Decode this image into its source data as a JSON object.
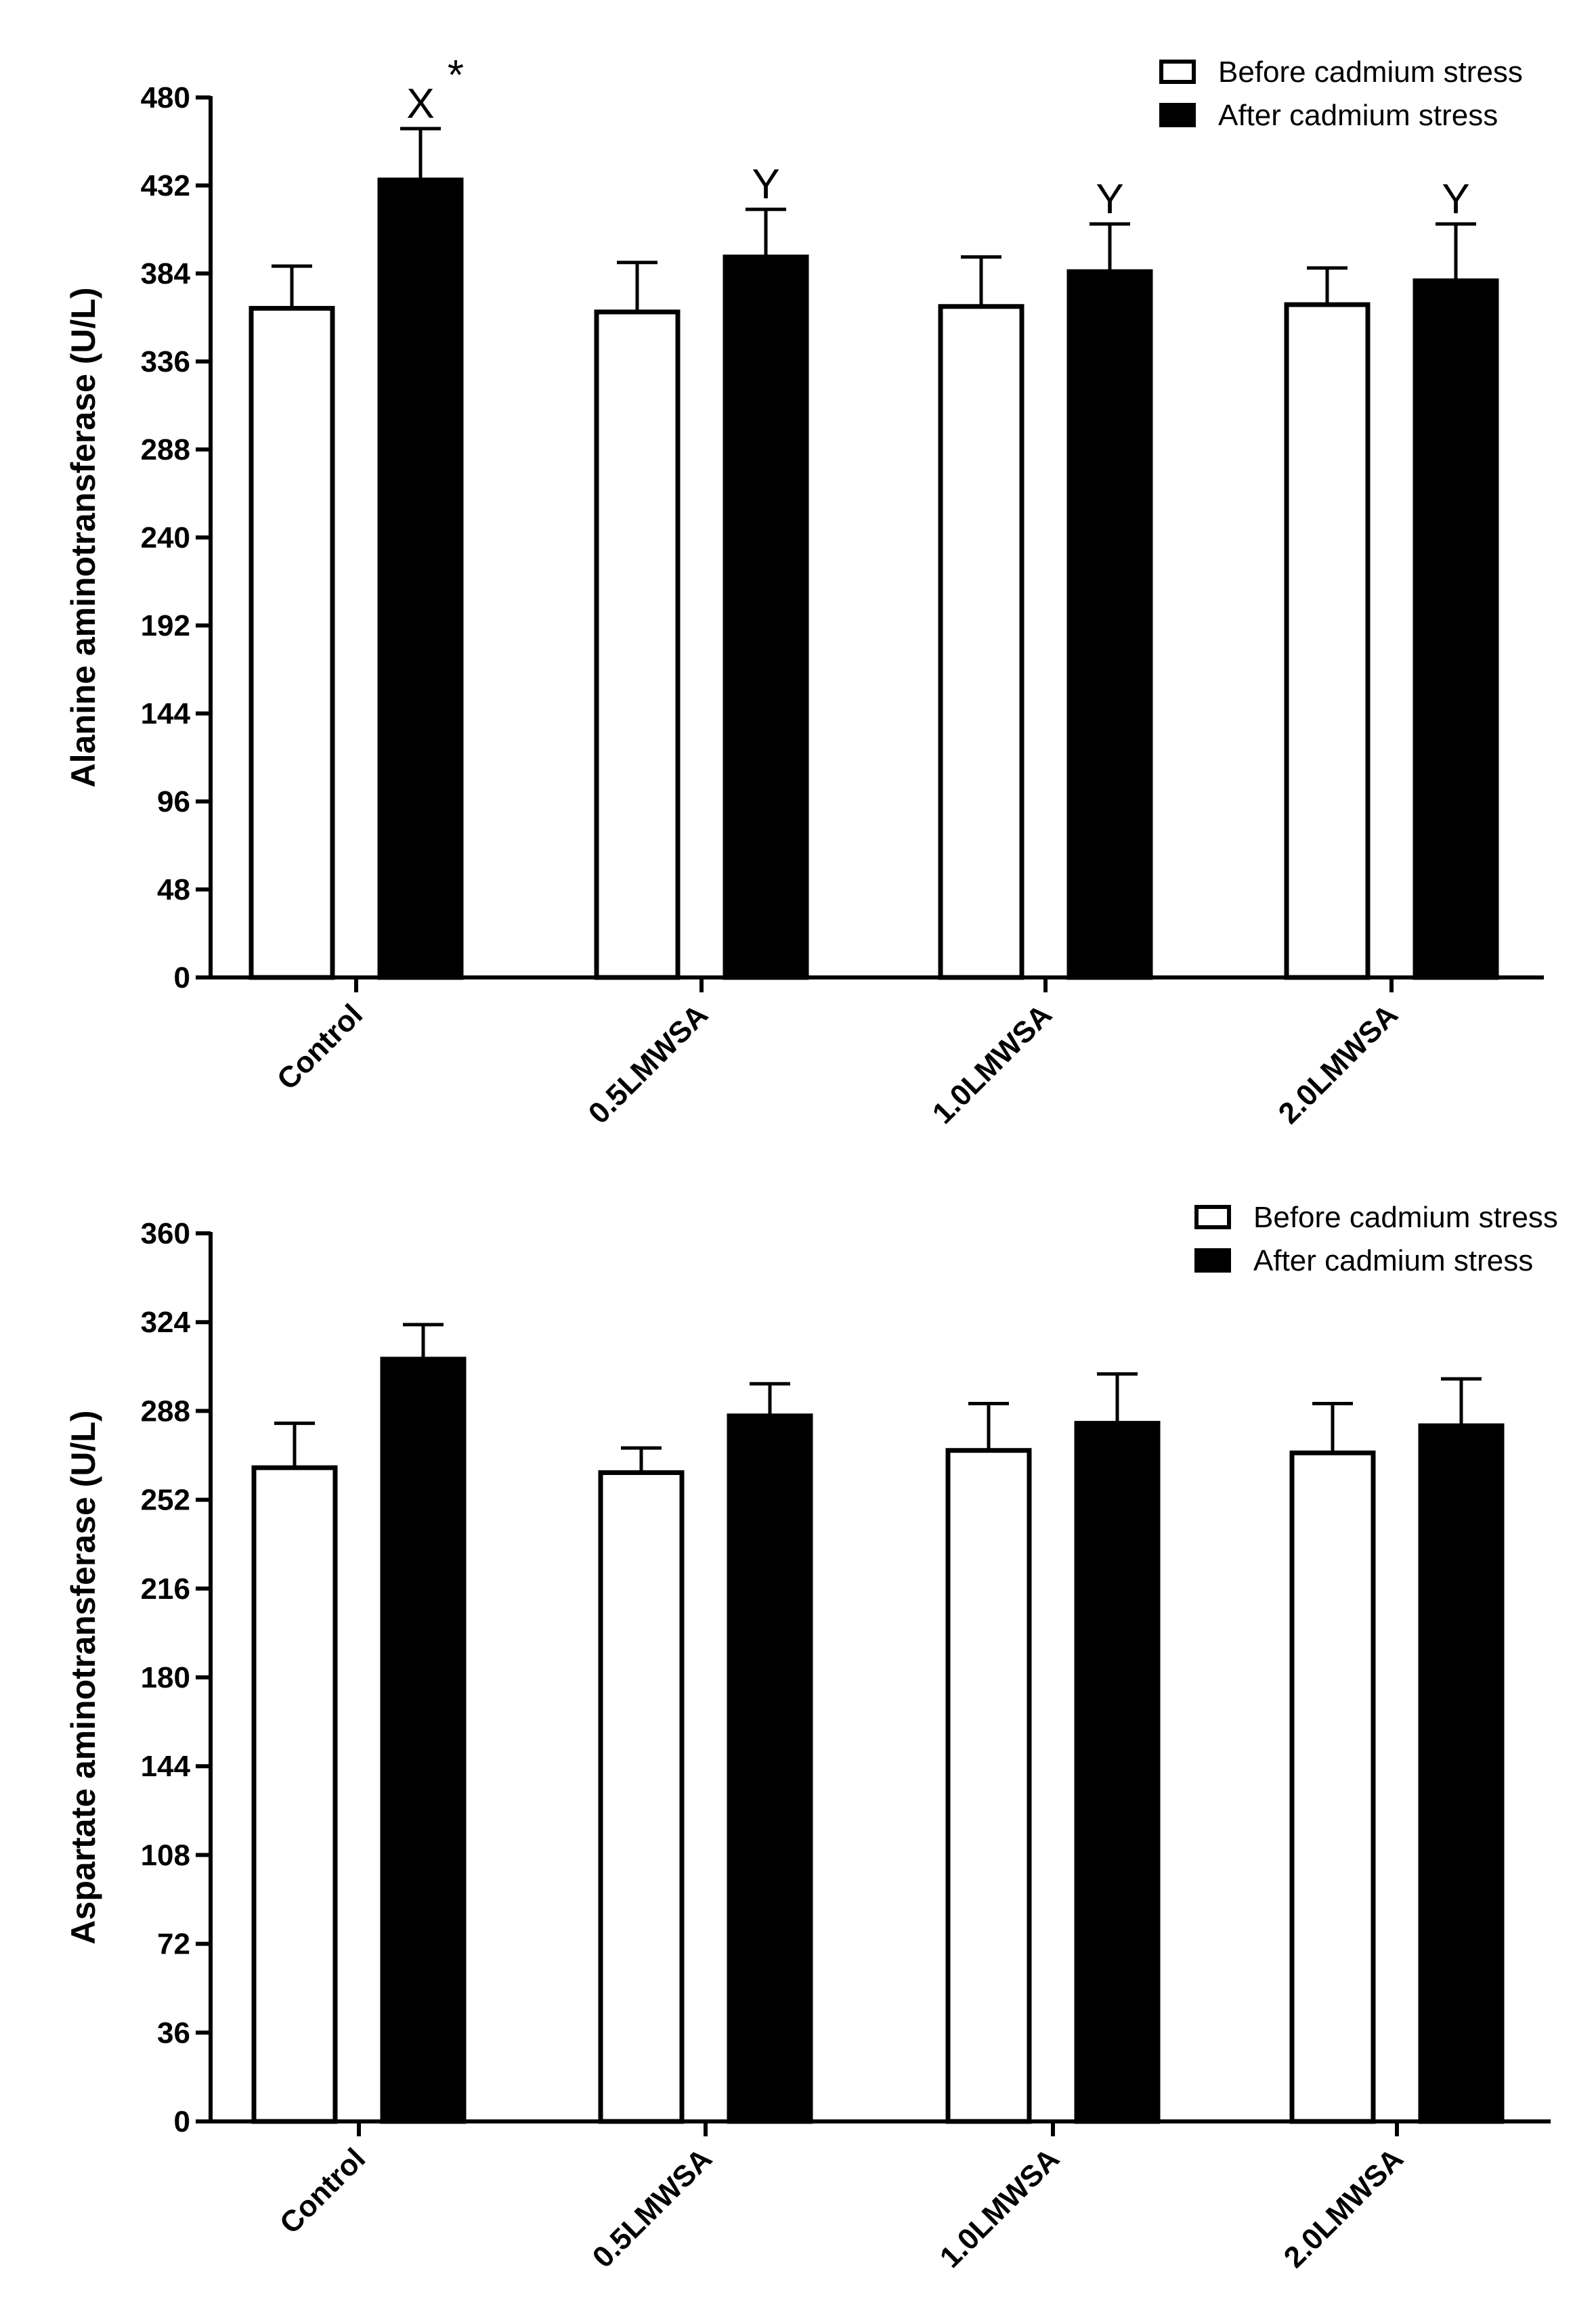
{
  "chart_data": [
    {
      "type": "bar",
      "ylabel": "Alanine aminotransferase  (U/L)",
      "categories": [
        "Control",
        "0.5LMWSA",
        "1.0LMWSA",
        "2.0LMWSA"
      ],
      "ylim": [
        0,
        480
      ],
      "yticks": [
        0,
        48,
        96,
        144,
        192,
        240,
        288,
        336,
        384,
        432,
        480
      ],
      "series": [
        {
          "name": "Before cadmium stress",
          "fill": "#ffffff",
          "values": [
            365,
            363,
            366,
            367
          ],
          "errors": [
            23,
            27,
            27,
            20
          ]
        },
        {
          "name": "After cadmium stress",
          "fill": "#000000",
          "values": [
            435,
            393,
            385,
            380
          ],
          "errors": [
            28,
            26,
            26,
            31
          ]
        }
      ],
      "annotations": [
        {
          "category": 0,
          "series": 1,
          "text": "X",
          "star": "*"
        },
        {
          "category": 1,
          "series": 1,
          "text": "Y",
          "star": ""
        },
        {
          "category": 2,
          "series": 1,
          "text": "Y",
          "star": ""
        },
        {
          "category": 3,
          "series": 1,
          "text": "Y",
          "star": ""
        }
      ],
      "legend": "top-right"
    },
    {
      "type": "bar",
      "ylabel": "Aspartate aminotransferase (U/L)",
      "categories": [
        "Control",
        "0.5LMWSA",
        "1.0LMWSA",
        "2.0LMWSA"
      ],
      "ylim": [
        0,
        360
      ],
      "yticks": [
        0,
        36,
        72,
        108,
        144,
        180,
        216,
        252,
        288,
        324,
        360
      ],
      "series": [
        {
          "name": "Before cadmium stress",
          "fill": "#ffffff",
          "values": [
            265,
            263,
            272,
            271
          ],
          "errors": [
            18,
            10,
            19,
            20
          ]
        },
        {
          "name": "After cadmium stress",
          "fill": "#000000",
          "values": [
            309,
            286,
            283,
            282
          ],
          "errors": [
            14,
            13,
            20,
            19
          ]
        }
      ],
      "annotations": [],
      "legend": "top-right"
    }
  ]
}
